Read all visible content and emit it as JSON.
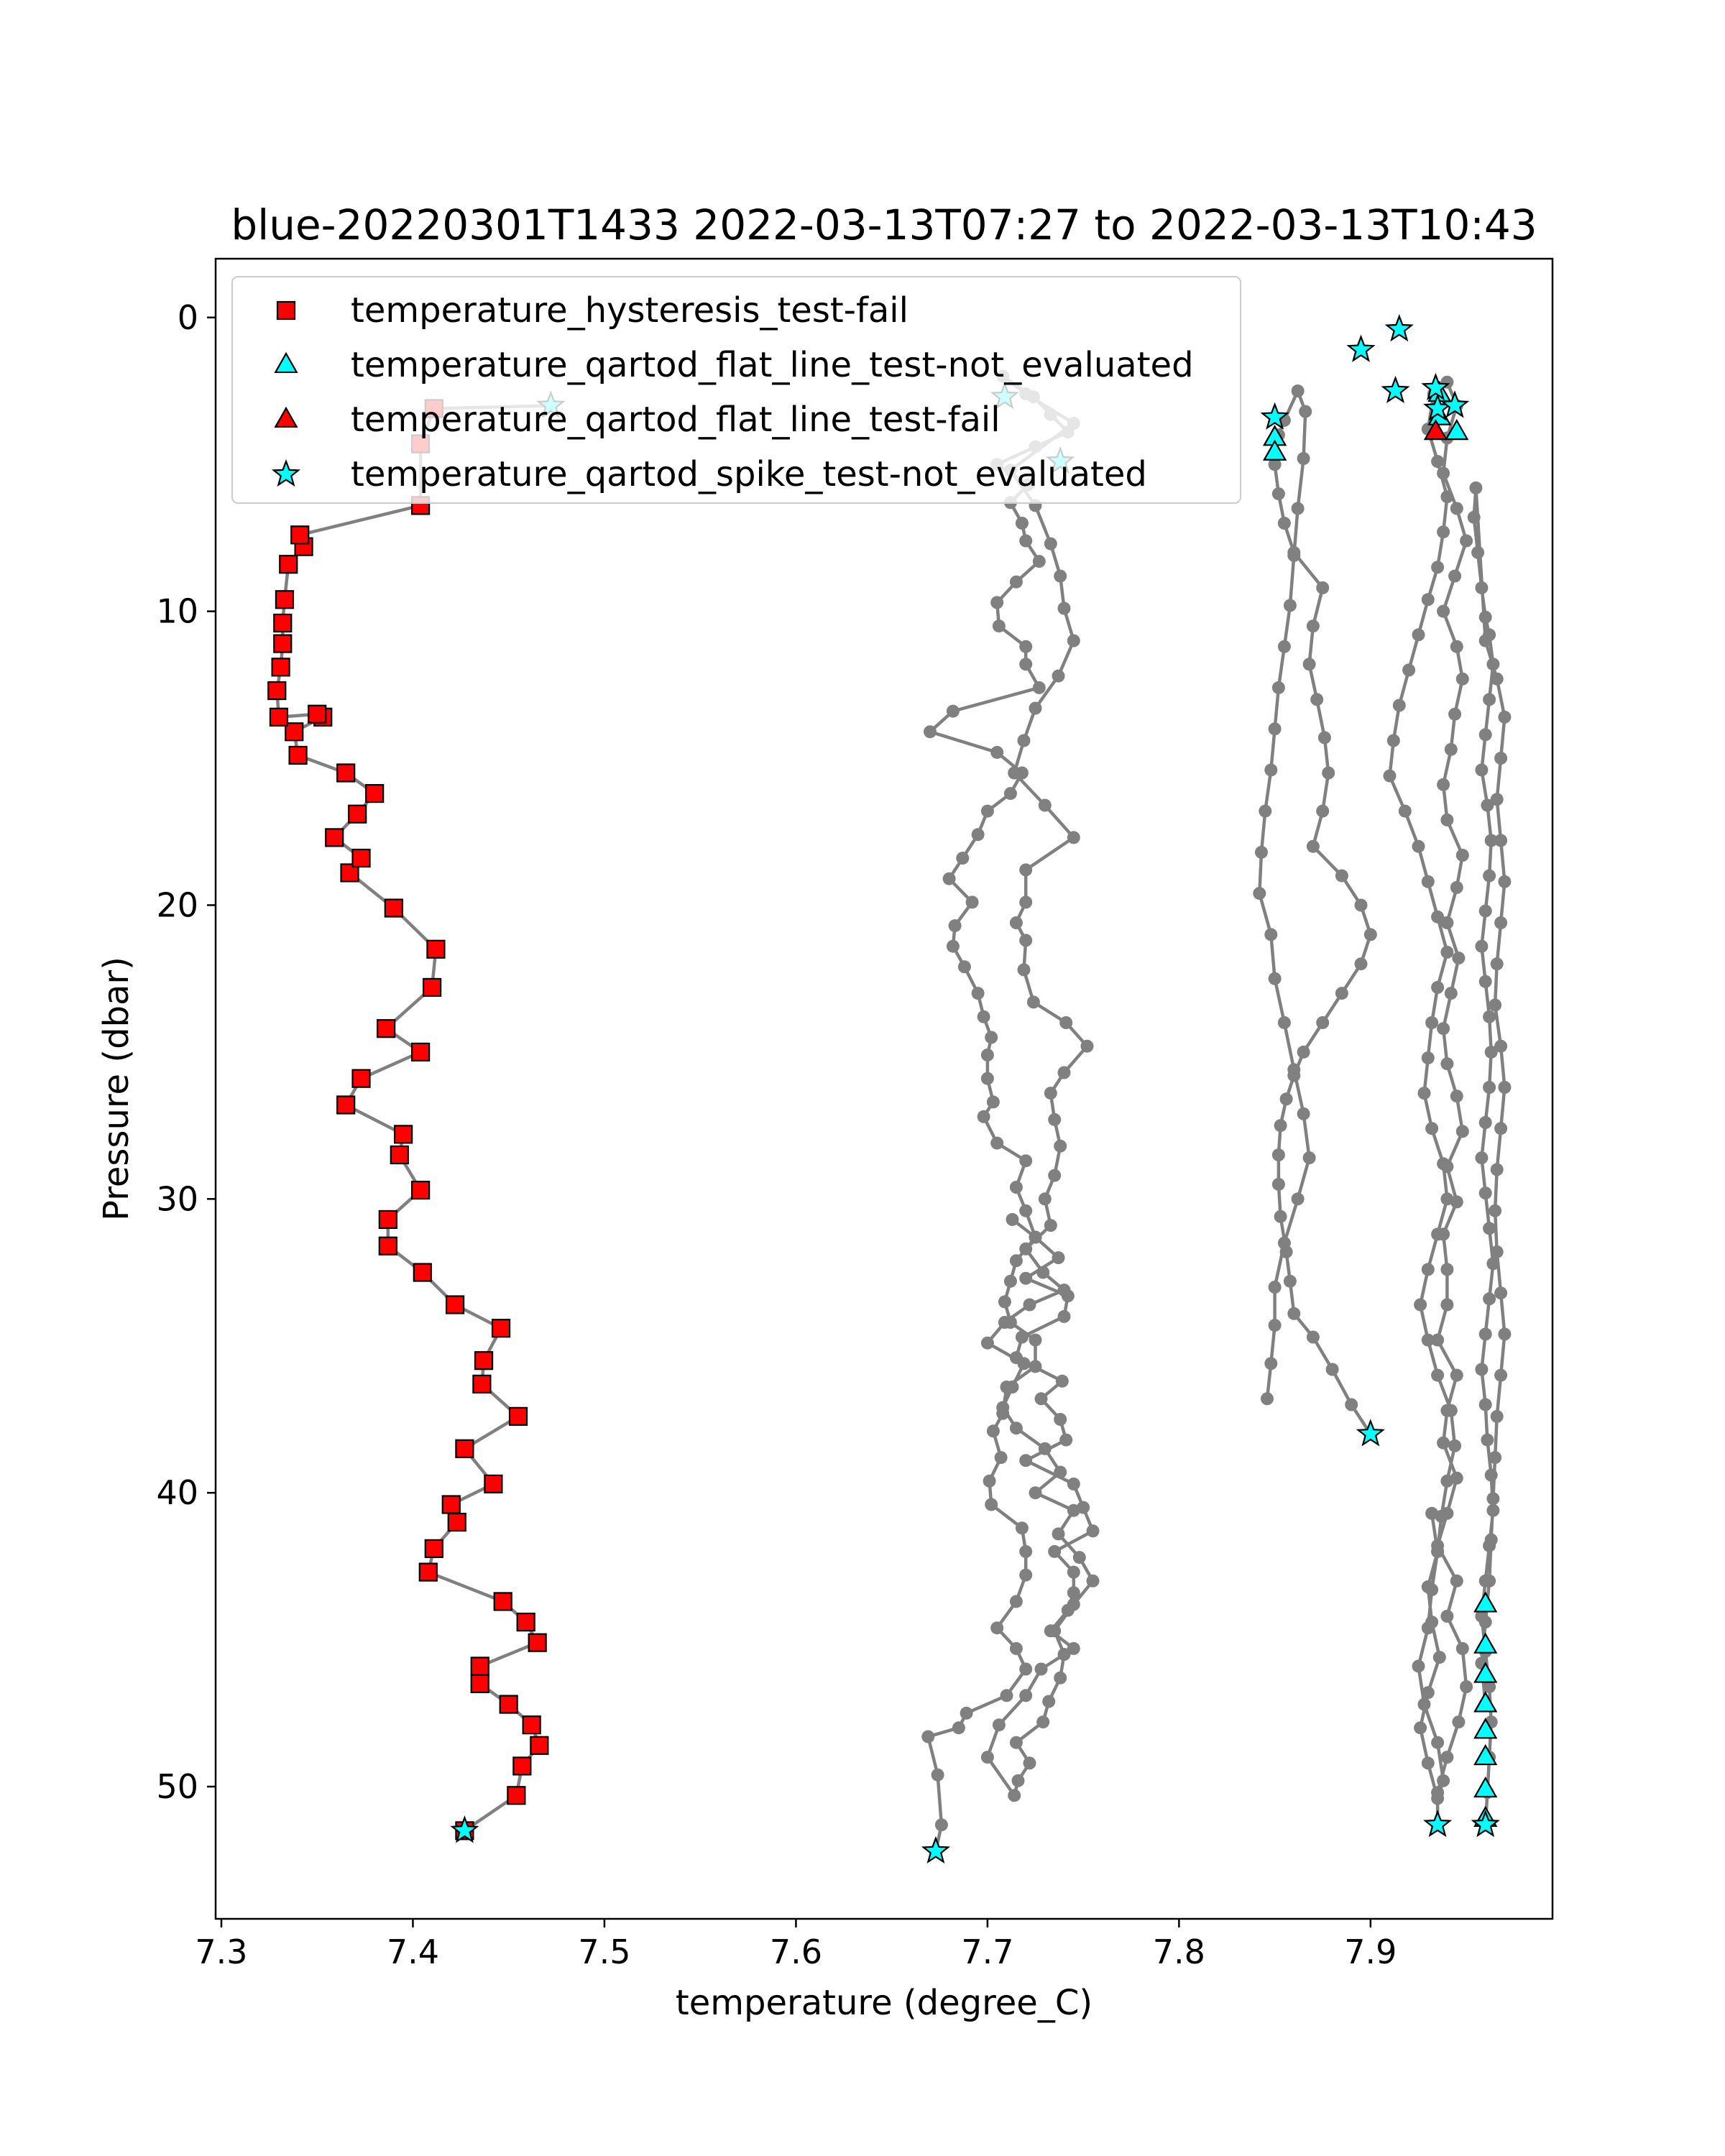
{
  "chart_data": {
    "type": "scatter",
    "title": "blue-20220301T1433 2022-03-13T07:27 to 2022-03-13T10:43",
    "xlabel": "temperature (degree_C)",
    "ylabel": "Pressure (dbar)",
    "xlim": [
      7.297,
      7.995
    ],
    "ylim": [
      54.5,
      -2.0
    ],
    "y_inverted": true,
    "grid": false,
    "legend_placement": "upper-left",
    "xticks": [
      7.3,
      7.4,
      7.5,
      7.6,
      7.7,
      7.8,
      7.9
    ],
    "xtick_labels": [
      "7.3",
      "7.4",
      "7.5",
      "7.6",
      "7.7",
      "7.8",
      "7.9"
    ],
    "yticks": [
      0,
      10,
      20,
      30,
      40,
      50
    ],
    "ytick_labels": [
      "0",
      "10",
      "20",
      "30",
      "40",
      "50"
    ],
    "colors": {
      "profile_line": "#808080",
      "hysteresis_fail": "#ff0000",
      "not_evaluated": "#00ffff",
      "flat_line_fail": "#ff0000",
      "marker_edge": "#000000"
    },
    "profiles": [
      {
        "x": [
          7.427,
          7.454,
          7.457,
          7.466,
          7.462,
          7.45,
          7.435,
          7.435,
          7.465,
          7.459,
          7.447,
          7.408,
          7.411,
          7.423,
          7.42,
          7.442,
          7.427,
          7.455,
          7.436,
          7.437,
          7.446,
          7.422,
          7.405,
          7.387,
          7.387,
          7.404,
          7.393,
          7.395,
          7.365,
          7.373,
          7.404,
          7.386,
          7.41,
          7.412,
          7.39,
          7.367,
          7.373,
          7.359,
          7.371,
          7.38,
          7.365,
          7.34,
          7.338,
          7.353,
          7.35,
          7.33,
          7.329,
          7.331,
          7.332,
          7.332,
          7.333,
          7.335,
          7.343,
          7.341,
          7.404,
          7.404,
          7.411,
          7.472
        ],
        "y": [
          51.5,
          50.3,
          49.3,
          48.6,
          47.9,
          47.2,
          46.5,
          45.9,
          45.1,
          44.4,
          43.7,
          42.7,
          41.9,
          41.0,
          40.4,
          39.7,
          38.5,
          37.4,
          36.3,
          35.5,
          34.4,
          33.6,
          32.5,
          31.6,
          30.7,
          29.7,
          28.5,
          27.8,
          26.8,
          25.9,
          25.0,
          24.2,
          22.8,
          21.5,
          20.1,
          18.9,
          18.4,
          17.7,
          16.9,
          16.2,
          15.5,
          14.9,
          14.1,
          13.6,
          13.5,
          13.6,
          12.7,
          11.9,
          11.1,
          10.4,
          9.6,
          8.4,
          7.8,
          7.4,
          6.4,
          4.3,
          3.1,
          3.0
        ]
      },
      {
        "x": [
          7.673,
          7.676,
          7.674,
          7.669,
          7.685,
          7.689,
          7.71,
          7.72,
          7.715,
          7.705,
          7.715,
          7.72,
          7.72,
          7.718,
          7.702,
          7.701,
          7.707,
          7.703,
          7.708,
          7.71,
          7.725,
          7.725,
          7.712,
          7.709,
          7.712,
          7.715,
          7.725,
          7.72,
          7.715,
          7.72,
          7.705,
          7.698,
          7.703,
          7.7,
          7.7,
          7.702,
          7.698,
          7.695,
          7.688,
          7.682,
          7.683,
          7.692,
          7.68,
          7.687,
          7.695,
          7.7,
          7.712,
          7.718,
          7.705,
          7.67,
          7.682,
          7.727,
          7.72,
          7.72,
          7.706,
          7.705,
          7.715,
          7.727,
          7.72,
          7.718,
          7.712,
          7.721,
          7.705,
          7.725,
          7.742,
          7.733,
          7.724,
          7.708,
          7.72,
          7.745,
          7.712,
          7.725,
          7.733,
          7.738,
          7.74,
          7.745,
          7.737,
          7.725,
          7.719,
          7.714,
          7.73,
          7.745,
          7.72,
          7.72,
          7.715,
          7.72,
          7.719,
          7.724,
          7.741,
          7.752,
          7.74,
          7.733,
          7.735,
          7.738,
          7.735,
          7.73,
          7.733,
          7.72,
          7.729,
          7.74,
          7.722,
          7.709,
          7.7,
          7.719,
          7.713,
          7.708,
          7.715,
          7.73,
          7.738,
          7.725,
          7.745,
          7.737,
          7.748,
          7.755,
          7.745,
          7.735,
          7.74,
          7.738,
          7.732,
          7.729,
          7.715,
          7.722,
          7.716,
          7.714,
          7.7,
          7.706,
          7.72,
          7.728,
          7.745,
          7.733,
          7.742,
          7.745,
          7.745,
          7.735,
          7.755,
          7.75,
          7.745,
          7.72,
          7.741,
          7.738,
          7.728,
          7.739,
          7.715,
          7.718,
          7.74,
          7.742,
          7.72,
          7.737,
          7.725,
          7.713
        ],
        "y": [
          52.2,
          51.3,
          49.6,
          48.3,
          48.0,
          47.5,
          46.9,
          46.0,
          45.3,
          44.6,
          43.7,
          42.8,
          42.0,
          41.2,
          40.4,
          39.6,
          38.8,
          37.9,
          37.3,
          36.4,
          35.7,
          34.8,
          34.2,
          33.5,
          32.8,
          32.1,
          31.3,
          30.4,
          29.6,
          28.7,
          28.1,
          27.2,
          26.7,
          25.9,
          25.1,
          24.5,
          23.8,
          23.0,
          22.1,
          21.4,
          20.7,
          19.9,
          19.1,
          18.4,
          17.6,
          16.8,
          16.2,
          15.5,
          14.8,
          14.1,
          13.4,
          12.6,
          11.8,
          11.2,
          10.5,
          9.7,
          9.0,
          8.3,
          7.6,
          7.0,
          6.3,
          5.7,
          5.0,
          4.4,
          3.9,
          3.3,
          2.7,
          2.0,
          2.6,
          3.6,
          5.2,
          6.4,
          7.7,
          8.8,
          9.9,
          11.0,
          12.2,
          13.3,
          14.4,
          15.5,
          16.6,
          17.7,
          18.8,
          19.9,
          20.6,
          21.2,
          22.2,
          23.3,
          24.0,
          24.8,
          25.7,
          26.4,
          27.3,
          28.2,
          29.2,
          30.0,
          30.9,
          31.7,
          32.5,
          33.1,
          33.6,
          34.2,
          34.9,
          35.6,
          36.4,
          37.1,
          37.8,
          38.5,
          39.3,
          40.0,
          40.6,
          41.4,
          42.2,
          43.0,
          43.8,
          44.7,
          45.5,
          46.3,
          47.1,
          47.8,
          48.5,
          49.2,
          49.8,
          50.3,
          49.0,
          47.9,
          46.9,
          46.0,
          45.3,
          44.7,
          44.0,
          43.4,
          42.7,
          42.0,
          41.3,
          40.5,
          39.7,
          38.9,
          38.2,
          37.5,
          36.8,
          36.2,
          35.4,
          34.7,
          34.0,
          33.3,
          32.7,
          32.0,
          31.3,
          30.7
        ]
      },
      {
        "x": [
          7.9,
          7.89,
          7.88,
          7.87,
          7.86,
          7.858,
          7.856,
          7.853,
          7.852,
          7.852,
          7.853,
          7.856,
          7.86,
          7.865,
          7.875,
          7.885,
          7.895,
          7.9,
          7.895,
          7.885,
          7.87,
          7.875,
          7.878,
          7.876,
          7.872,
          7.868,
          7.87,
          7.875,
          7.86,
          7.855,
          7.852,
          7.85,
          7.852,
          7.855,
          7.862,
          7.866,
          7.865,
          7.862,
          7.86,
          7.858,
          7.855,
          7.852,
          7.85,
          7.848,
          7.845,
          7.843,
          7.842,
          7.848,
          7.85,
          7.855,
          7.86,
          7.865,
          7.868,
          7.862,
          7.855,
          7.85,
          7.85,
          7.848,
          7.846
        ],
        "y": [
          38.0,
          37.0,
          35.8,
          34.7,
          33.9,
          32.8,
          31.8,
          30.6,
          29.5,
          28.5,
          27.5,
          26.6,
          25.8,
          25.0,
          24.0,
          23.0,
          22.0,
          21.0,
          20.0,
          19.0,
          18.0,
          16.8,
          15.5,
          14.3,
          13.0,
          11.8,
          10.5,
          9.2,
          8.0,
          7.0,
          6.0,
          5.0,
          4.0,
          3.5,
          2.5,
          3.2,
          4.8,
          6.5,
          8.1,
          9.8,
          11.2,
          12.6,
          14.0,
          15.4,
          16.8,
          18.2,
          19.6,
          21.0,
          22.5,
          24.0,
          25.6,
          27.1,
          28.6,
          30.0,
          31.5,
          33.0,
          34.3,
          35.6,
          36.8
        ]
      },
      {
        "x": [
          7.935,
          7.935,
          7.94,
          7.946,
          7.95,
          7.948,
          7.94,
          7.945,
          7.935,
          7.94,
          7.945,
          7.938,
          7.94,
          7.945,
          7.935,
          7.94,
          7.94,
          7.938,
          7.945,
          7.94,
          7.948,
          7.945,
          7.94,
          7.938,
          7.942,
          7.946,
          7.94,
          7.945,
          7.948,
          7.94,
          7.938,
          7.942,
          7.944,
          7.948,
          7.945,
          7.938,
          7.944,
          7.95,
          7.945,
          7.938,
          7.94,
          7.945,
          7.94,
          7.933,
          7.93,
          7.935,
          7.94,
          7.938,
          7.935,
          7.93,
          7.925,
          7.92,
          7.915,
          7.912,
          7.91,
          7.918,
          7.925,
          7.93,
          7.935,
          7.94,
          7.935,
          7.932,
          7.93,
          7.928,
          7.932,
          7.938,
          7.94,
          7.935,
          7.93,
          7.926,
          7.93,
          7.935,
          7.942,
          7.944,
          7.94,
          7.937,
          7.935,
          7.93,
          7.932,
          7.936,
          7.93,
          7.926,
          7.93,
          7.935,
          7.938,
          7.935,
          7.928,
          7.925,
          7.93,
          7.932,
          7.935,
          7.932
        ],
        "y": [
          51.3,
          50.2,
          49.0,
          47.8,
          46.6,
          45.3,
          44.2,
          43.0,
          41.8,
          40.7,
          39.5,
          38.3,
          37.2,
          36.0,
          34.8,
          33.6,
          32.4,
          31.2,
          30.1,
          28.9,
          27.7,
          26.5,
          25.4,
          24.2,
          23.0,
          21.8,
          20.6,
          19.4,
          18.3,
          17.1,
          15.9,
          14.7,
          13.5,
          12.3,
          11.2,
          10.0,
          8.8,
          7.6,
          6.5,
          5.3,
          4.1,
          3.0,
          2.2,
          2.6,
          3.8,
          4.9,
          6.1,
          7.3,
          8.5,
          9.6,
          10.8,
          12.0,
          13.2,
          14.4,
          15.6,
          16.8,
          18.0,
          19.2,
          20.4,
          21.6,
          22.8,
          24.0,
          25.2,
          26.4,
          27.6,
          28.8,
          30.0,
          31.2,
          32.4,
          33.6,
          34.8,
          36.0,
          37.2,
          38.4,
          39.6,
          40.8,
          42.0,
          43.2,
          44.4,
          45.6,
          46.8,
          48.0,
          49.2,
          50.4,
          49.8,
          48.5,
          47.2,
          45.9,
          44.6,
          43.3,
          42.0,
          40.7
        ]
      },
      {
        "x": [
          7.96,
          7.961,
          7.962,
          7.963,
          7.962,
          7.96,
          7.958,
          7.96,
          7.962,
          7.964,
          7.963,
          7.961,
          7.96,
          7.958,
          7.96,
          7.962,
          7.964,
          7.962,
          7.96,
          7.958,
          7.96,
          7.962,
          7.963,
          7.962,
          7.96,
          7.958,
          7.96,
          7.962,
          7.963,
          7.961,
          7.958,
          7.96,
          7.962,
          7.964,
          7.962,
          7.96,
          7.958,
          7.956,
          7.954,
          7.955,
          7.96,
          7.966,
          7.97,
          7.968,
          7.966,
          7.968,
          7.97,
          7.968,
          7.966,
          7.965,
          7.968,
          7.97,
          7.968,
          7.966,
          7.965,
          7.966,
          7.968,
          7.97,
          7.968,
          7.966,
          7.965,
          7.964,
          7.963,
          7.962,
          7.96,
          7.958,
          7.96
        ],
        "y": [
          51.3,
          50.2,
          49.0,
          47.8,
          46.6,
          45.4,
          44.2,
          43.0,
          41.8,
          40.6,
          39.4,
          38.2,
          37.0,
          35.8,
          34.6,
          33.4,
          32.2,
          31.0,
          29.8,
          28.6,
          27.4,
          26.2,
          25.0,
          23.8,
          22.6,
          21.4,
          20.2,
          19.0,
          17.8,
          16.6,
          15.4,
          14.2,
          13.0,
          11.8,
          10.8,
          10.2,
          9.2,
          8.0,
          6.8,
          5.8,
          11.0,
          12.3,
          13.6,
          15.0,
          16.4,
          17.8,
          19.2,
          20.6,
          22.0,
          23.4,
          24.8,
          26.2,
          27.6,
          29.0,
          30.4,
          31.8,
          33.2,
          34.6,
          36.0,
          37.4,
          38.8,
          40.2,
          41.6,
          43.0,
          44.4,
          45.8,
          47.2
        ]
      }
    ],
    "series": [
      {
        "name": "temperature_hysteresis_test-fail",
        "marker": "square",
        "color": "#ff0000",
        "x": [
          7.427,
          7.454,
          7.457,
          7.466,
          7.462,
          7.45,
          7.435,
          7.435,
          7.465,
          7.459,
          7.447,
          7.408,
          7.411,
          7.423,
          7.42,
          7.442,
          7.427,
          7.455,
          7.436,
          7.437,
          7.446,
          7.422,
          7.405,
          7.387,
          7.387,
          7.404,
          7.393,
          7.395,
          7.365,
          7.373,
          7.404,
          7.386,
          7.41,
          7.412,
          7.39,
          7.367,
          7.373,
          7.359,
          7.371,
          7.38,
          7.365,
          7.34,
          7.338,
          7.353,
          7.35,
          7.33,
          7.329,
          7.331,
          7.332,
          7.332,
          7.333,
          7.335,
          7.343,
          7.341,
          7.404,
          7.404,
          7.411
        ],
        "y": [
          51.5,
          50.3,
          49.3,
          48.6,
          47.9,
          47.2,
          46.5,
          45.9,
          45.1,
          44.4,
          43.7,
          42.7,
          41.9,
          41.0,
          40.4,
          39.7,
          38.5,
          37.4,
          36.3,
          35.5,
          34.4,
          33.6,
          32.5,
          31.6,
          30.7,
          29.7,
          28.5,
          27.8,
          26.8,
          25.9,
          25.0,
          24.2,
          22.8,
          21.5,
          20.1,
          18.9,
          18.4,
          17.7,
          16.9,
          16.2,
          15.5,
          14.9,
          14.1,
          13.6,
          13.5,
          13.6,
          12.7,
          11.9,
          11.1,
          10.4,
          9.6,
          8.4,
          7.8,
          7.4,
          6.4,
          4.3,
          3.1
        ]
      },
      {
        "name": "temperature_qartod_flat_line_test-not_evaluated",
        "marker": "triangle",
        "color": "#00ffff",
        "x": [
          7.85,
          7.85,
          7.936,
          7.936,
          7.945,
          7.96,
          7.96,
          7.96,
          7.96,
          7.96,
          7.96,
          7.96,
          7.96
        ],
        "y": [
          4.1,
          4.6,
          2.6,
          3.4,
          3.9,
          43.8,
          45.2,
          46.2,
          47.2,
          48.1,
          49.0,
          50.1,
          51.1
        ]
      },
      {
        "name": "temperature_qartod_flat_line_test-fail",
        "marker": "triangle",
        "color": "#ff0000",
        "x": [
          7.934
        ],
        "y": [
          3.9
        ]
      },
      {
        "name": "temperature_qartod_spike_test-not_evaluated",
        "marker": "star",
        "color": "#00ffff",
        "x": [
          7.427,
          7.472,
          7.673,
          7.709,
          7.738,
          7.85,
          7.9,
          7.895,
          7.915,
          7.913,
          7.934,
          7.935,
          7.944,
          7.935,
          7.96
        ],
        "y": [
          51.5,
          3.0,
          52.2,
          2.7,
          4.9,
          3.4,
          38.0,
          1.1,
          0.4,
          2.5,
          2.4,
          3.1,
          3.0,
          51.3,
          51.3
        ]
      }
    ]
  }
}
